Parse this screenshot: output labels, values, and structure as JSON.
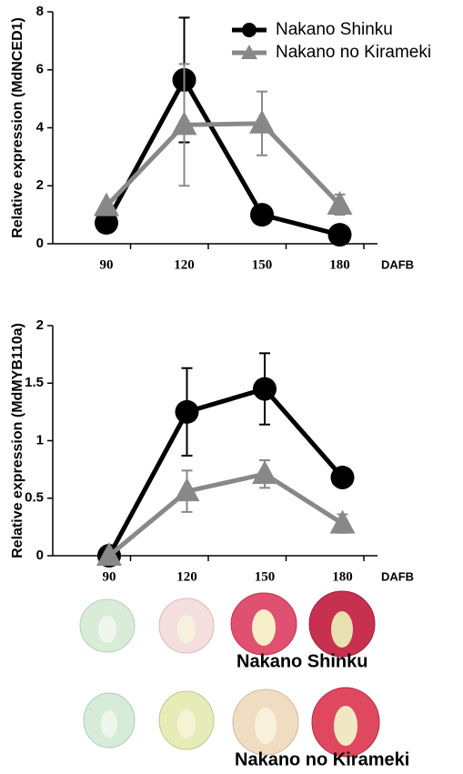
{
  "chart_data": [
    {
      "type": "line",
      "y_label": "Relative expression (MdNCED1)",
      "x_unit": "DAFB",
      "categories": [
        "90",
        "120",
        "150",
        "180"
      ],
      "ylim": [
        0,
        8
      ],
      "yticks": [
        0,
        2,
        4,
        6,
        8
      ],
      "legend": "upper right",
      "series": [
        {
          "name": "Nakano Shinku",
          "color": "#000000",
          "marker": "circle",
          "values": [
            0.72,
            5.65,
            1.0,
            0.31
          ],
          "errors": [
            0.1,
            2.15,
            0.1,
            0.05
          ]
        },
        {
          "name": "Nakano no Kirameki",
          "color": "#888888",
          "marker": "triangle",
          "values": [
            1.3,
            4.1,
            4.15,
            1.35
          ],
          "errors": [
            0.1,
            2.1,
            1.1,
            0.35
          ]
        }
      ]
    },
    {
      "type": "line",
      "y_label": "Relative expression (MdMYB110a)",
      "x_unit": "DAFB",
      "categories": [
        "90",
        "120",
        "150",
        "180"
      ],
      "ylim": [
        0,
        2
      ],
      "yticks": [
        0,
        0.5,
        1,
        1.5,
        2
      ],
      "series": [
        {
          "name": "Nakano Shinku",
          "color": "#000000",
          "marker": "circle",
          "values": [
            0,
            1.25,
            1.45,
            0.68
          ],
          "errors": [
            0,
            0.38,
            0.31,
            0.02
          ]
        },
        {
          "name": "Nakano no Kirameki",
          "color": "#888888",
          "marker": "triangle",
          "values": [
            0,
            0.56,
            0.71,
            0.28
          ],
          "errors": [
            0,
            0.18,
            0.12,
            0.08
          ]
        }
      ]
    }
  ],
  "photo_labels": [
    "Nakano Shinku",
    "Nakano no Kirameki"
  ]
}
